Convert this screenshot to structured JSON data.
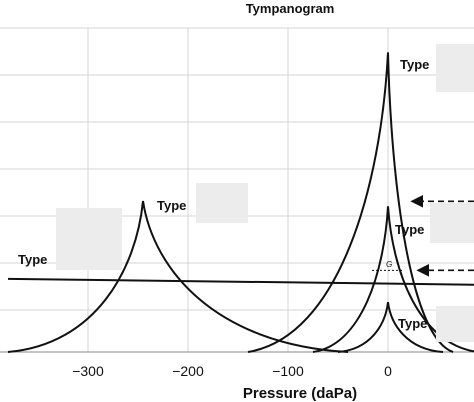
{
  "chart_data": {
    "type": "line",
    "title": "Tympanogram",
    "xlabel": "Pressure (daPa)",
    "ylabel": "",
    "xlim": [
      -380,
      420
    ],
    "ylim": [
      0,
      100
    ],
    "grid": true,
    "x_ticks": [
      -300,
      -200,
      -100,
      0
    ],
    "x_tick_labels": [
      "−300",
      "−200",
      "−100",
      "0"
    ],
    "series": [
      {
        "peak_x": 0,
        "peak_y": 95.4,
        "base_y": 0,
        "left_x": -140,
        "right_x": 65
      },
      {
        "peak_x": -245,
        "peak_y": 48.1,
        "base_y": 0,
        "left_x": -380,
        "right_x": -40
      },
      {
        "peak_x": 0,
        "peak_y": 46.4,
        "base_y": 0,
        "left_x": -75,
        "right_x": 90
      },
      {
        "peak_x": 0,
        "peak_y": 15.9,
        "base_y": 0,
        "left_x": -50,
        "right_x": 55
      },
      {
        "flat_from": [
          -380,
          23.3
        ],
        "flat_to": [
          420,
          20.1
        ]
      }
    ],
    "annotations": [
      {
        "text": "Type",
        "x": 12,
        "y": 91
      },
      {
        "text": "Type",
        "x": -230,
        "y": 44
      },
      {
        "text": "Type",
        "x": 5,
        "y": 37
      },
      {
        "text": "Type",
        "x": -355,
        "y": 28
      },
      {
        "text": "Type",
        "x": 12,
        "y": 8
      },
      {
        "text": "G",
        "x": 0,
        "y": 26
      }
    ]
  },
  "style": {
    "line_color": "#111111",
    "grid_color": "#d4d4d4",
    "mask_color": "#ececec"
  }
}
